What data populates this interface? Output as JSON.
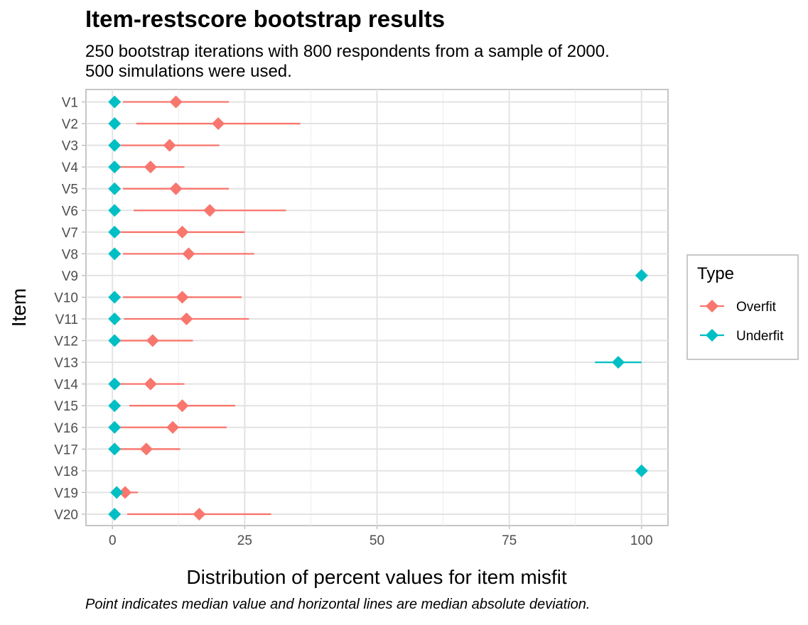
{
  "chart_data": {
    "type": "scatter",
    "title": "Item-restscore bootstrap results",
    "subtitle_lines": [
      "250 bootstrap iterations with 800 respondents from a sample of 2000.",
      "500 simulations were used."
    ],
    "xlabel": "Distribution of percent values for item misfit",
    "ylabel": "Item",
    "caption": "Point indicates median value and horizontal lines are median absolute deviation.",
    "xlim": [
      -5,
      105
    ],
    "x_ticks": [
      0,
      25,
      50,
      75,
      100
    ],
    "x_tick_labels": [
      "0",
      "25",
      "50",
      "75",
      "100"
    ],
    "categories": [
      "V1",
      "V2",
      "V3",
      "V4",
      "V5",
      "V6",
      "V7",
      "V8",
      "V9",
      "V10",
      "V11",
      "V12",
      "V13",
      "V14",
      "V15",
      "V16",
      "V17",
      "V18",
      "V19",
      "V20"
    ],
    "grid": true,
    "legend": {
      "title": "Type",
      "position": "right"
    },
    "series": [
      {
        "name": "Overfit",
        "color": "#F8766D",
        "points": [
          {
            "item": "V1",
            "median": 12.0,
            "low": 2.0,
            "high": 22.0
          },
          {
            "item": "V2",
            "median": 20.0,
            "low": 4.5,
            "high": 35.5
          },
          {
            "item": "V3",
            "median": 10.8,
            "low": 1.6,
            "high": 20.2
          },
          {
            "item": "V4",
            "median": 7.2,
            "low": 1.2,
            "high": 13.6
          },
          {
            "item": "V5",
            "median": 12.0,
            "low": 2.0,
            "high": 22.0
          },
          {
            "item": "V6",
            "median": 18.4,
            "low": 4.0,
            "high": 32.8
          },
          {
            "item": "V7",
            "median": 13.2,
            "low": 1.6,
            "high": 25.0
          },
          {
            "item": "V8",
            "median": 14.4,
            "low": 2.0,
            "high": 26.8
          },
          {
            "item": "V10",
            "median": 13.2,
            "low": 2.0,
            "high": 24.4
          },
          {
            "item": "V11",
            "median": 14.0,
            "low": 2.2,
            "high": 25.8
          },
          {
            "item": "V12",
            "median": 7.6,
            "low": 0.0,
            "high": 15.2
          },
          {
            "item": "V14",
            "median": 7.2,
            "low": 1.0,
            "high": 13.6
          },
          {
            "item": "V15",
            "median": 13.2,
            "low": 3.2,
            "high": 23.2
          },
          {
            "item": "V16",
            "median": 11.4,
            "low": 1.0,
            "high": 21.6
          },
          {
            "item": "V17",
            "median": 6.4,
            "low": 0.0,
            "high": 12.8
          },
          {
            "item": "V19",
            "median": 2.4,
            "low": 0.0,
            "high": 4.8
          },
          {
            "item": "V20",
            "median": 16.4,
            "low": 2.8,
            "high": 30.0
          }
        ]
      },
      {
        "name": "Underfit",
        "color": "#00BFC4",
        "points": [
          {
            "item": "V1",
            "median": 0.4,
            "low": 0.4,
            "high": 0.4
          },
          {
            "item": "V2",
            "median": 0.4,
            "low": 0.4,
            "high": 0.4
          },
          {
            "item": "V3",
            "median": 0.4,
            "low": 0.4,
            "high": 0.4
          },
          {
            "item": "V4",
            "median": 0.4,
            "low": 0.4,
            "high": 0.4
          },
          {
            "item": "V5",
            "median": 0.4,
            "low": 0.4,
            "high": 0.4
          },
          {
            "item": "V6",
            "median": 0.4,
            "low": 0.4,
            "high": 0.4
          },
          {
            "item": "V7",
            "median": 0.4,
            "low": 0.4,
            "high": 0.4
          },
          {
            "item": "V8",
            "median": 0.4,
            "low": 0.4,
            "high": 0.4
          },
          {
            "item": "V9",
            "median": 100.0,
            "low": 100.0,
            "high": 100.0
          },
          {
            "item": "V10",
            "median": 0.4,
            "low": 0.4,
            "high": 0.4
          },
          {
            "item": "V11",
            "median": 0.4,
            "low": 0.4,
            "high": 0.4
          },
          {
            "item": "V12",
            "median": 0.4,
            "low": 0.4,
            "high": 0.4
          },
          {
            "item": "V13",
            "median": 95.6,
            "low": 91.2,
            "high": 100.0
          },
          {
            "item": "V14",
            "median": 0.4,
            "low": 0.4,
            "high": 0.4
          },
          {
            "item": "V15",
            "median": 0.4,
            "low": 0.4,
            "high": 0.4
          },
          {
            "item": "V16",
            "median": 0.4,
            "low": 0.4,
            "high": 0.4
          },
          {
            "item": "V17",
            "median": 0.4,
            "low": 0.4,
            "high": 0.4
          },
          {
            "item": "V18",
            "median": 100.0,
            "low": 100.0,
            "high": 100.0
          },
          {
            "item": "V19",
            "median": 0.8,
            "low": 0.8,
            "high": 0.8
          },
          {
            "item": "V20",
            "median": 0.4,
            "low": 0.4,
            "high": 0.4
          }
        ]
      }
    ]
  }
}
